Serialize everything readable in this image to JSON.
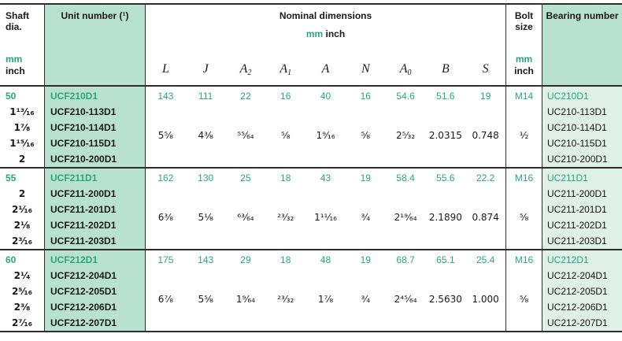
{
  "colors": {
    "teal_text": "#2aa77c",
    "header_bg": "#b9e1d1",
    "bearing_col_bg": "#def0e8",
    "border": "#2e2e2e"
  },
  "header": {
    "shaft_title": "Shaft dia.",
    "unit_title": "Unit number (¹)",
    "nominal_title": "Nominal dimensions",
    "units_mm": "mm",
    "units_inch": "inch",
    "bolt_title": "Bolt size",
    "bearing_title": "Bearing number",
    "dim_letters": [
      {
        "b": "L",
        "s": ""
      },
      {
        "b": "J",
        "s": ""
      },
      {
        "b": "A",
        "s": "2"
      },
      {
        "b": "A",
        "s": "1"
      },
      {
        "b": "A",
        "s": ""
      },
      {
        "b": "N",
        "s": ""
      },
      {
        "b": "A",
        "s": "0"
      },
      {
        "b": "B",
        "s": ""
      },
      {
        "b": "S",
        "s": ""
      }
    ]
  },
  "groups": [
    {
      "shaft_mm": "50",
      "shaft_inch": [
        "1¹³⁄₁₆",
        "1⁷⁄₈",
        "1¹⁵⁄₁₆",
        "2"
      ],
      "unit_numbers": [
        "UCF210D1",
        "UCF210-113D1",
        "UCF210-114D1",
        "UCF210-115D1",
        "UCF210-200D1"
      ],
      "dims_mm": [
        "143",
        "111",
        "22",
        "16",
        "40",
        "16",
        "54.6",
        "51.6",
        "19"
      ],
      "dims_inch": [
        "5⁵⁄₈",
        "4³⁄₈",
        "⁵⁵⁄₆₄",
        "⁵⁄₈",
        "1⁹⁄₁₆",
        "⁵⁄₈",
        "2⁵⁄₃₂",
        "2.0315",
        "0.748"
      ],
      "bolt_mm": "M14",
      "bolt_inch": "¹⁄₂",
      "bearing_numbers": [
        "UC210D1",
        "UC210-113D1",
        "UC210-114D1",
        "UC210-115D1",
        "UC210-200D1"
      ]
    },
    {
      "shaft_mm": "55",
      "shaft_inch": [
        "2",
        "2¹⁄₁₆",
        "2¹⁄₈",
        "2³⁄₁₆"
      ],
      "unit_numbers": [
        "UCF211D1",
        "UCF211-200D1",
        "UCF211-201D1",
        "UCF211-202D1",
        "UCF211-203D1"
      ],
      "dims_mm": [
        "162",
        "130",
        "25",
        "18",
        "43",
        "19",
        "58.4",
        "55.6",
        "22.2"
      ],
      "dims_inch": [
        "6³⁄₈",
        "5¹⁄₈",
        "⁶³⁄₆₄",
        "²³⁄₃₂",
        "1¹¹⁄₁₆",
        "³⁄₄",
        "2¹⁹⁄₆₄",
        "2.1890",
        "0.874"
      ],
      "bolt_mm": "M16",
      "bolt_inch": "⁵⁄₈",
      "bearing_numbers": [
        "UC211D1",
        "UC211-200D1",
        "UC211-201D1",
        "UC211-202D1",
        "UC211-203D1"
      ]
    },
    {
      "shaft_mm": "60",
      "shaft_inch": [
        "2¹⁄₄",
        "2⁵⁄₁₆",
        "2³⁄₈",
        "2⁷⁄₁₆"
      ],
      "unit_numbers": [
        "UCF212D1",
        "UCF212-204D1",
        "UCF212-205D1",
        "UCF212-206D1",
        "UCF212-207D1"
      ],
      "dims_mm": [
        "175",
        "143",
        "29",
        "18",
        "48",
        "19",
        "68.7",
        "65.1",
        "25.4"
      ],
      "dims_inch": [
        "6⁷⁄₈",
        "5⁵⁄₈",
        "1⁹⁄₆₄",
        "²³⁄₃₂",
        "1⁷⁄₈",
        "³⁄₄",
        "2⁴⁵⁄₆₄",
        "2.5630",
        "1.000"
      ],
      "bolt_mm": "M16",
      "bolt_inch": "⁵⁄₈",
      "bearing_numbers": [
        "UC212D1",
        "UC212-204D1",
        "UC212-205D1",
        "UC212-206D1",
        "UC212-207D1"
      ]
    }
  ]
}
